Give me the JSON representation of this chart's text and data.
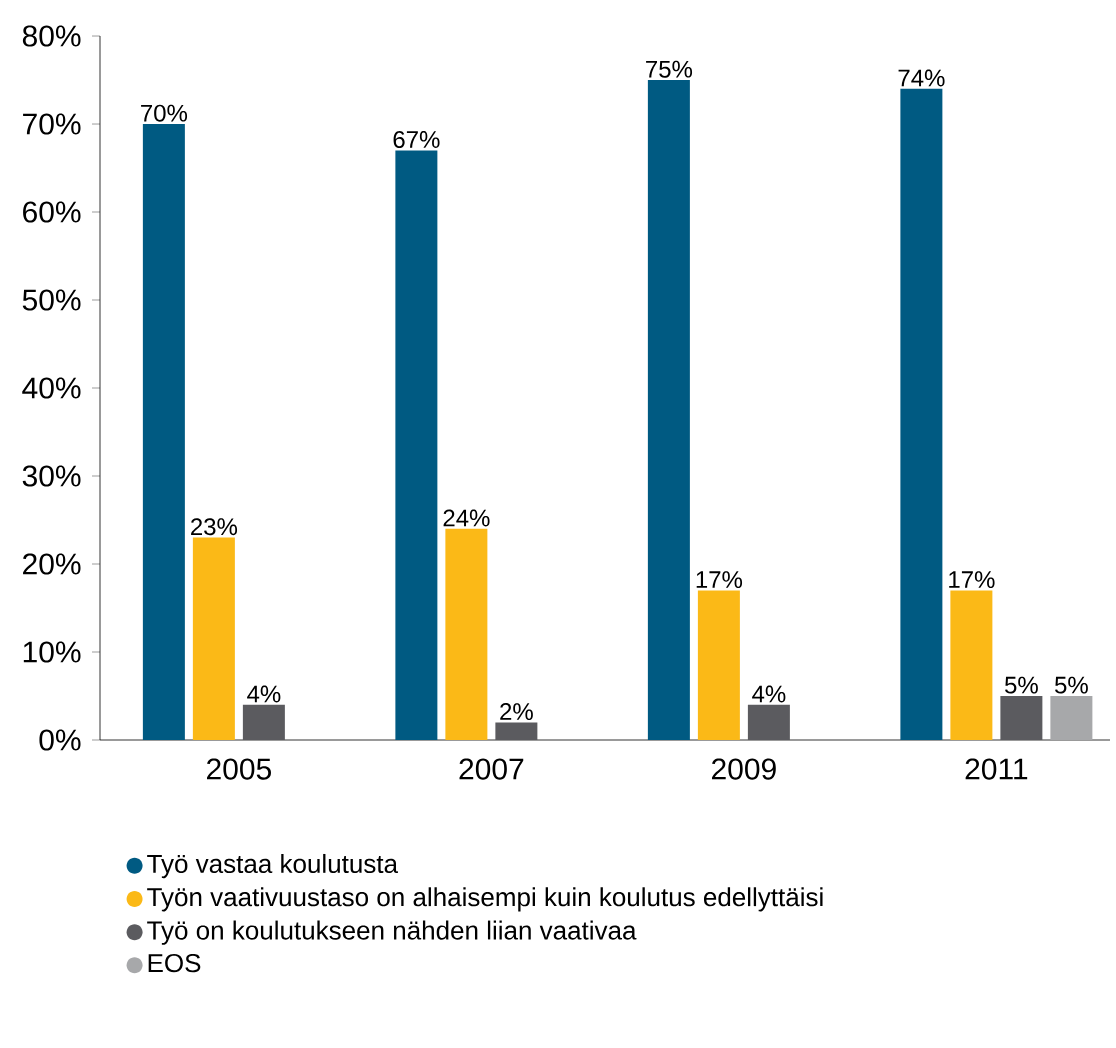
{
  "chart_data": {
    "type": "bar",
    "categories": [
      "2005",
      "2007",
      "2009",
      "2011"
    ],
    "series": [
      {
        "name": "Työ vastaa koulutusta",
        "color": "#005a82",
        "values": [
          70,
          67,
          75,
          74
        ],
        "value_labels": [
          "70%",
          "67%",
          "75%",
          "74%"
        ]
      },
      {
        "name": "Työn vaativuustaso on alhaisempi kuin koulutus edellyttäisi",
        "color": "#fbb917",
        "values": [
          23,
          24,
          17,
          17
        ],
        "value_labels": [
          "23%",
          "24%",
          "17%",
          "17%"
        ]
      },
      {
        "name": "Työ on koulutukseen nähden liian vaativaa",
        "color": "#5b5b5f",
        "values": [
          4,
          2,
          4,
          5
        ],
        "value_labels": [
          "4%",
          "2%",
          "4%",
          "5%"
        ]
      },
      {
        "name": "EOS",
        "color": "#a7a8aa",
        "values": [
          null,
          null,
          null,
          5
        ],
        "value_labels": [
          null,
          null,
          null,
          "5%"
        ]
      }
    ],
    "ylim": [
      0,
      80
    ],
    "yticks": [
      {
        "value": 0,
        "label": "0%"
      },
      {
        "value": 10,
        "label": "10%"
      },
      {
        "value": 20,
        "label": "20%"
      },
      {
        "value": 30,
        "label": "30%"
      },
      {
        "value": 40,
        "label": "40%"
      },
      {
        "value": 50,
        "label": "50%"
      },
      {
        "value": 60,
        "label": "60%"
      },
      {
        "value": 70,
        "label": "70%"
      },
      {
        "value": 80,
        "label": "80%"
      }
    ],
    "grid": false,
    "legend": "bottom"
  }
}
